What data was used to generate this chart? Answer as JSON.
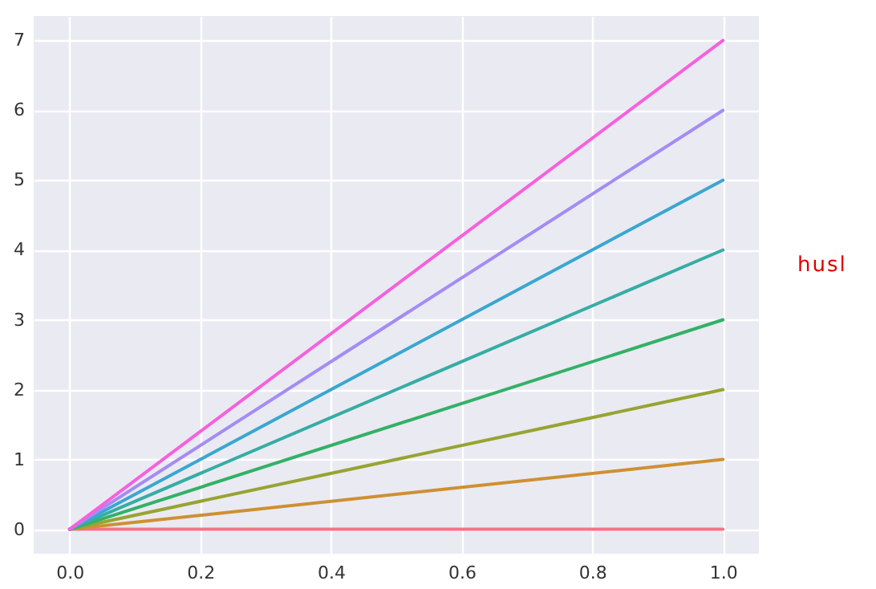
{
  "chart_data": {
    "type": "line",
    "x": [
      0,
      1
    ],
    "series": [
      {
        "color": "#f77189",
        "values": [
          0,
          0
        ]
      },
      {
        "color": "#ce9032",
        "values": [
          0,
          1
        ]
      },
      {
        "color": "#97a431",
        "values": [
          0,
          2
        ]
      },
      {
        "color": "#32b166",
        "values": [
          0,
          3
        ]
      },
      {
        "color": "#36ada4",
        "values": [
          0,
          4
        ]
      },
      {
        "color": "#39a7d0",
        "values": [
          0,
          5
        ]
      },
      {
        "color": "#a48cf4",
        "values": [
          0,
          6
        ]
      },
      {
        "color": "#f561dd",
        "values": [
          0,
          7
        ]
      }
    ],
    "xlim": [
      -0.055,
      1.055
    ],
    "xticks": [
      {
        "value": 0,
        "label": "0.0"
      },
      0.2,
      0.4,
      0.6,
      0.8,
      {
        "value": 1,
        "label": "1.0"
      }
    ],
    "ylim": [
      -0.35,
      7.35
    ],
    "yticks": [
      0,
      1,
      2,
      3,
      4,
      5,
      6,
      7
    ],
    "grid": true,
    "annotations": [
      "husl"
    ]
  }
}
